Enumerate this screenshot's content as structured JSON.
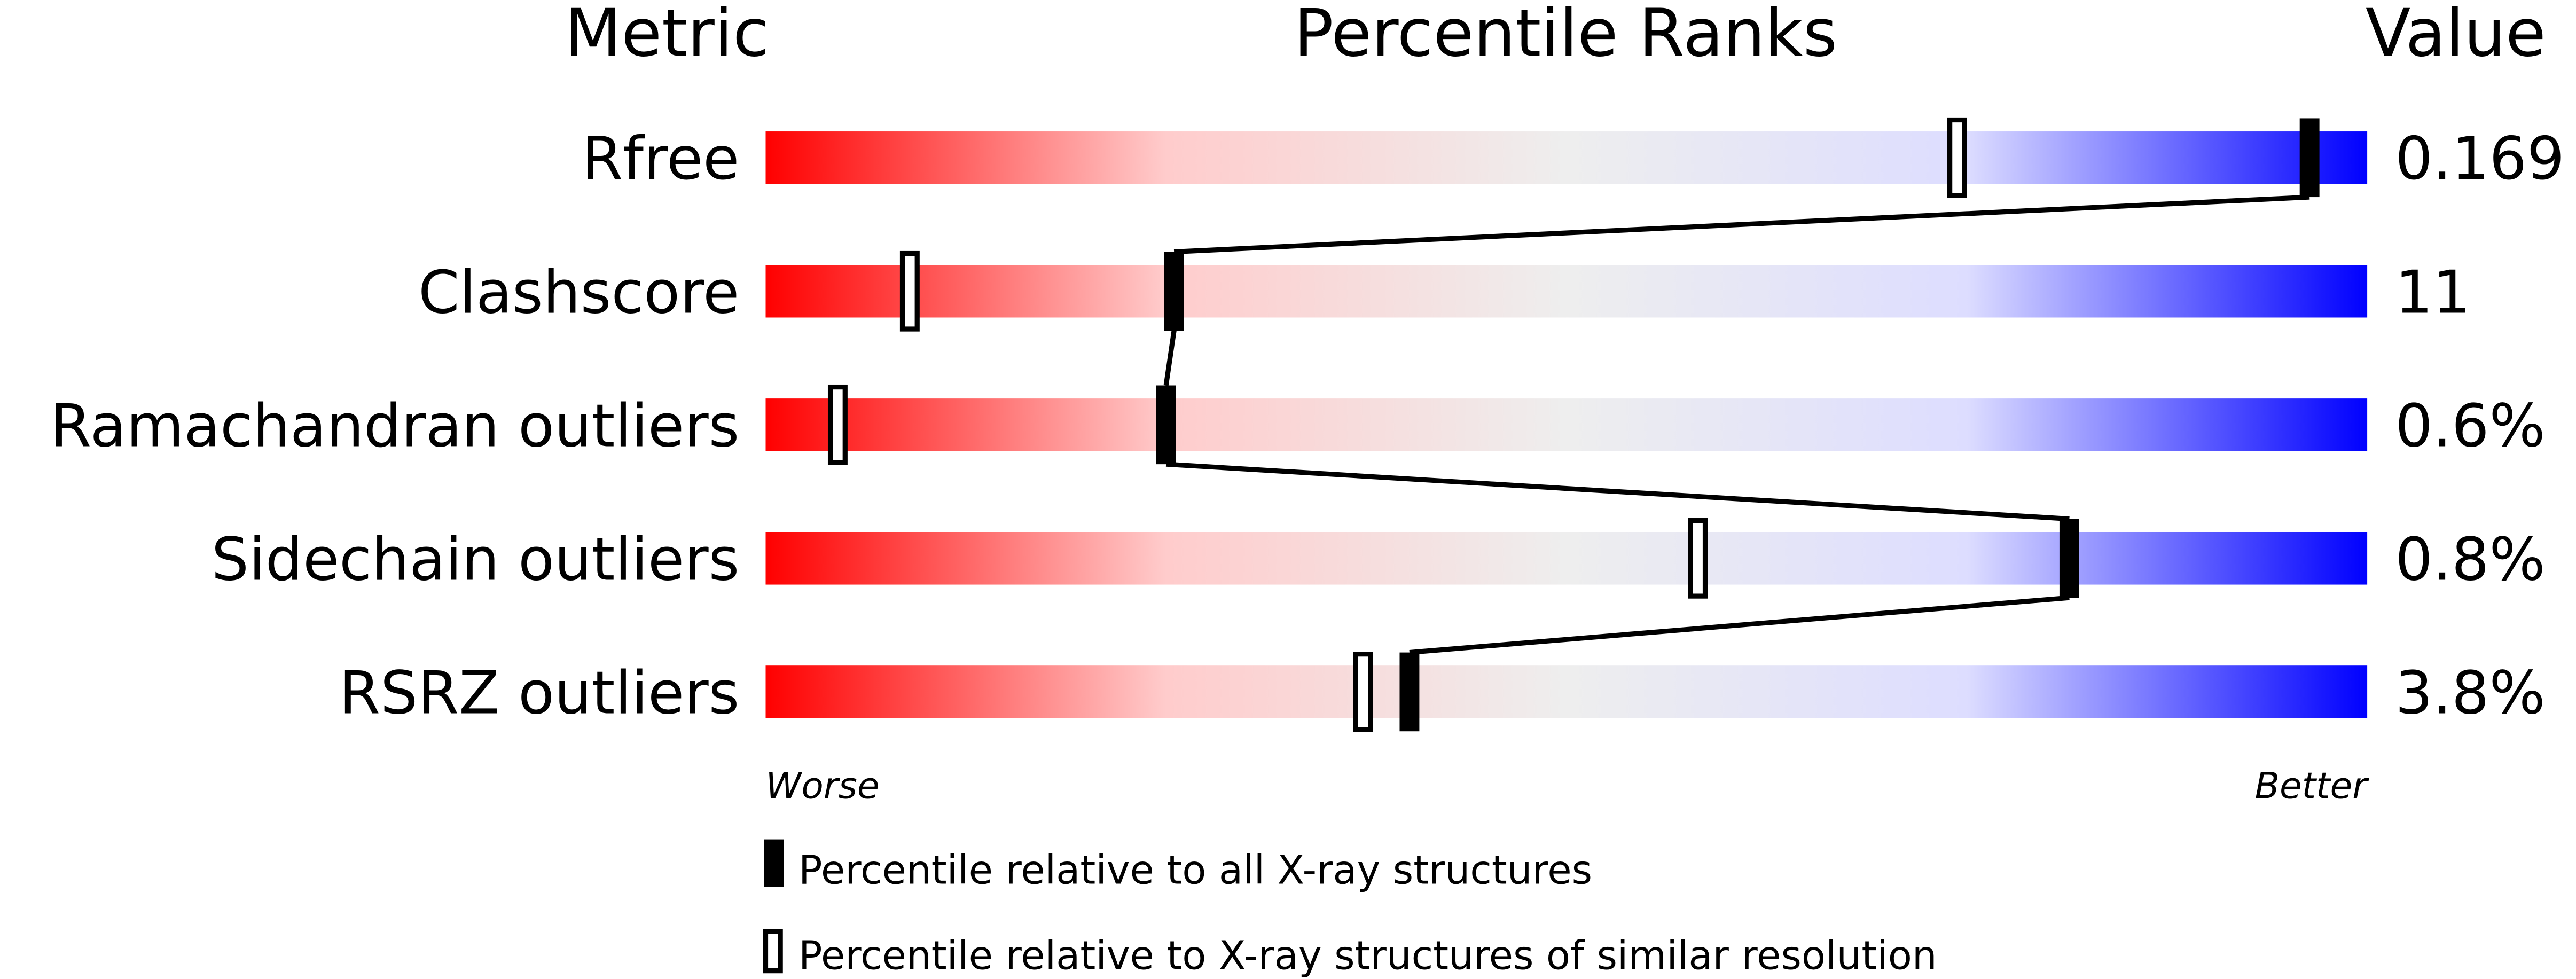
{
  "chart_data": {
    "type": "bar",
    "headers": {
      "metric": "Metric",
      "ranks": "Percentile Ranks",
      "value": "Value"
    },
    "xlim": [
      0,
      100
    ],
    "axis_labels": {
      "left": "Worse",
      "right": "Better"
    },
    "gradient_colors": [
      "#ff0000",
      "#ffcccc",
      "#eeeeee",
      "#ddddff",
      "#0000ff"
    ],
    "rows": [
      {
        "metric": "Rfree",
        "value": "0.169",
        "percentile_all": 96.4,
        "percentile_similar": 74.4
      },
      {
        "metric": "Clashscore",
        "value": "11",
        "percentile_all": 25.5,
        "percentile_similar": 9.0
      },
      {
        "metric": "Ramachandran outliers",
        "value": "0.6%",
        "percentile_all": 25.0,
        "percentile_similar": 4.5
      },
      {
        "metric": "Sidechain outliers",
        "value": "0.8%",
        "percentile_all": 81.4,
        "percentile_similar": 58.2
      },
      {
        "metric": "RSRZ outliers",
        "value": "3.8%",
        "percentile_all": 40.2,
        "percentile_similar": 37.3
      }
    ],
    "legend": {
      "all": "Percentile relative to all X-ray structures",
      "similar": "Percentile relative to X-ray structures of similar resolution"
    }
  }
}
